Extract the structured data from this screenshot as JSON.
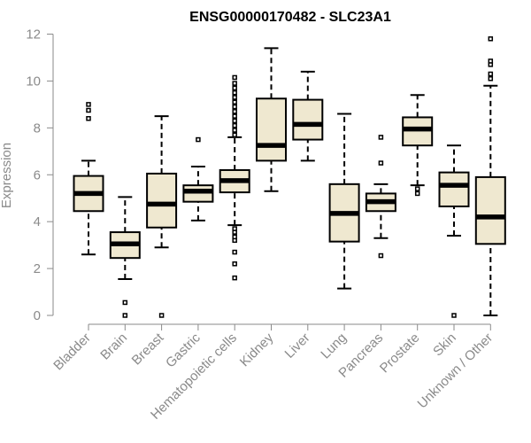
{
  "chart_data": {
    "type": "boxplot",
    "title": "ENSG00000170482 - SLC23A1",
    "xlabel": "",
    "ylabel": "Expression",
    "ylim": [
      0,
      12
    ],
    "yticks": [
      0,
      2,
      4,
      6,
      8,
      10,
      12
    ],
    "colors": {
      "box_fill": "#efe8d0",
      "stroke": "#000000",
      "axis": "#8a8a8a"
    },
    "categories": [
      "Bladder",
      "Brain",
      "Breast",
      "Gastric",
      "Hematopoietic cells",
      "Kidney",
      "Liver",
      "Lung",
      "Pancreas",
      "Prostate",
      "Skin",
      "Unknown / Other"
    ],
    "boxes": [
      {
        "name": "Bladder",
        "whisker_low": 2.6,
        "q1": 4.45,
        "median": 5.2,
        "q3": 5.95,
        "whisker_high": 6.6,
        "outliers": [
          8.4,
          8.75,
          9.0
        ]
      },
      {
        "name": "Brain",
        "whisker_low": 1.55,
        "q1": 2.45,
        "median": 3.05,
        "q3": 3.55,
        "whisker_high": 5.05,
        "outliers": [
          0.0,
          0.55
        ]
      },
      {
        "name": "Breast",
        "whisker_low": 2.9,
        "q1": 3.75,
        "median": 4.75,
        "q3": 6.05,
        "whisker_high": 8.5,
        "outliers": [
          0.0
        ]
      },
      {
        "name": "Gastric",
        "whisker_low": 4.05,
        "q1": 4.85,
        "median": 5.3,
        "q3": 5.55,
        "whisker_high": 6.35,
        "outliers": [
          7.5
        ]
      },
      {
        "name": "Hematopoietic cells",
        "whisker_low": 3.85,
        "q1": 5.25,
        "median": 5.75,
        "q3": 6.2,
        "whisker_high": 7.6,
        "outliers": [
          1.6,
          2.2,
          2.7,
          3.2,
          3.35,
          3.55,
          3.7,
          7.7,
          7.9,
          8.1,
          8.3,
          8.5,
          8.7,
          8.9,
          9.1,
          9.3,
          9.5,
          9.7,
          9.9,
          10.15
        ]
      },
      {
        "name": "Kidney",
        "whisker_low": 5.3,
        "q1": 6.6,
        "median": 7.25,
        "q3": 9.25,
        "whisker_high": 11.4,
        "outliers": []
      },
      {
        "name": "Liver",
        "whisker_low": 6.6,
        "q1": 7.5,
        "median": 8.15,
        "q3": 9.2,
        "whisker_high": 10.4,
        "outliers": []
      },
      {
        "name": "Lung",
        "whisker_low": 1.15,
        "q1": 3.15,
        "median": 4.35,
        "q3": 5.6,
        "whisker_high": 8.6,
        "outliers": []
      },
      {
        "name": "Pancreas",
        "whisker_low": 3.3,
        "q1": 4.45,
        "median": 4.85,
        "q3": 5.2,
        "whisker_high": 5.6,
        "outliers": [
          2.55,
          6.5,
          7.6
        ]
      },
      {
        "name": "Prostate",
        "whisker_low": 5.55,
        "q1": 7.25,
        "median": 7.95,
        "q3": 8.45,
        "whisker_high": 9.4,
        "outliers": [
          5.2,
          5.4
        ]
      },
      {
        "name": "Skin",
        "whisker_low": 3.4,
        "q1": 4.65,
        "median": 5.55,
        "q3": 6.1,
        "whisker_high": 7.25,
        "outliers": [
          0.0
        ]
      },
      {
        "name": "Unknown / Other",
        "whisker_low": 0.0,
        "q1": 3.05,
        "median": 4.2,
        "q3": 5.9,
        "whisker_high": 9.8,
        "outliers": [
          10.1,
          10.3,
          10.7,
          10.85,
          11.8
        ]
      }
    ]
  }
}
